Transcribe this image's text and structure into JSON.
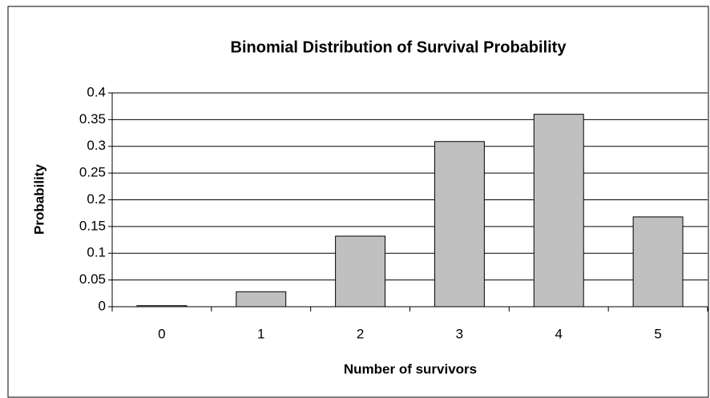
{
  "chart_data": {
    "type": "bar",
    "title": "Binomial Distribution of Survival Probability",
    "x_label": "Number of survivors",
    "y_label": "Probability",
    "categories": [
      "0",
      "1",
      "2",
      "3",
      "4",
      "5"
    ],
    "values": [
      0.002,
      0.028,
      0.132,
      0.309,
      0.36,
      0.168
    ],
    "color": "#c0c0c0",
    "ylim": [
      0,
      0.4
    ],
    "yticks": [
      0,
      0.05,
      0.1,
      0.15,
      0.2,
      0.25,
      0.3,
      0.35,
      0.4
    ],
    "grid": true
  }
}
